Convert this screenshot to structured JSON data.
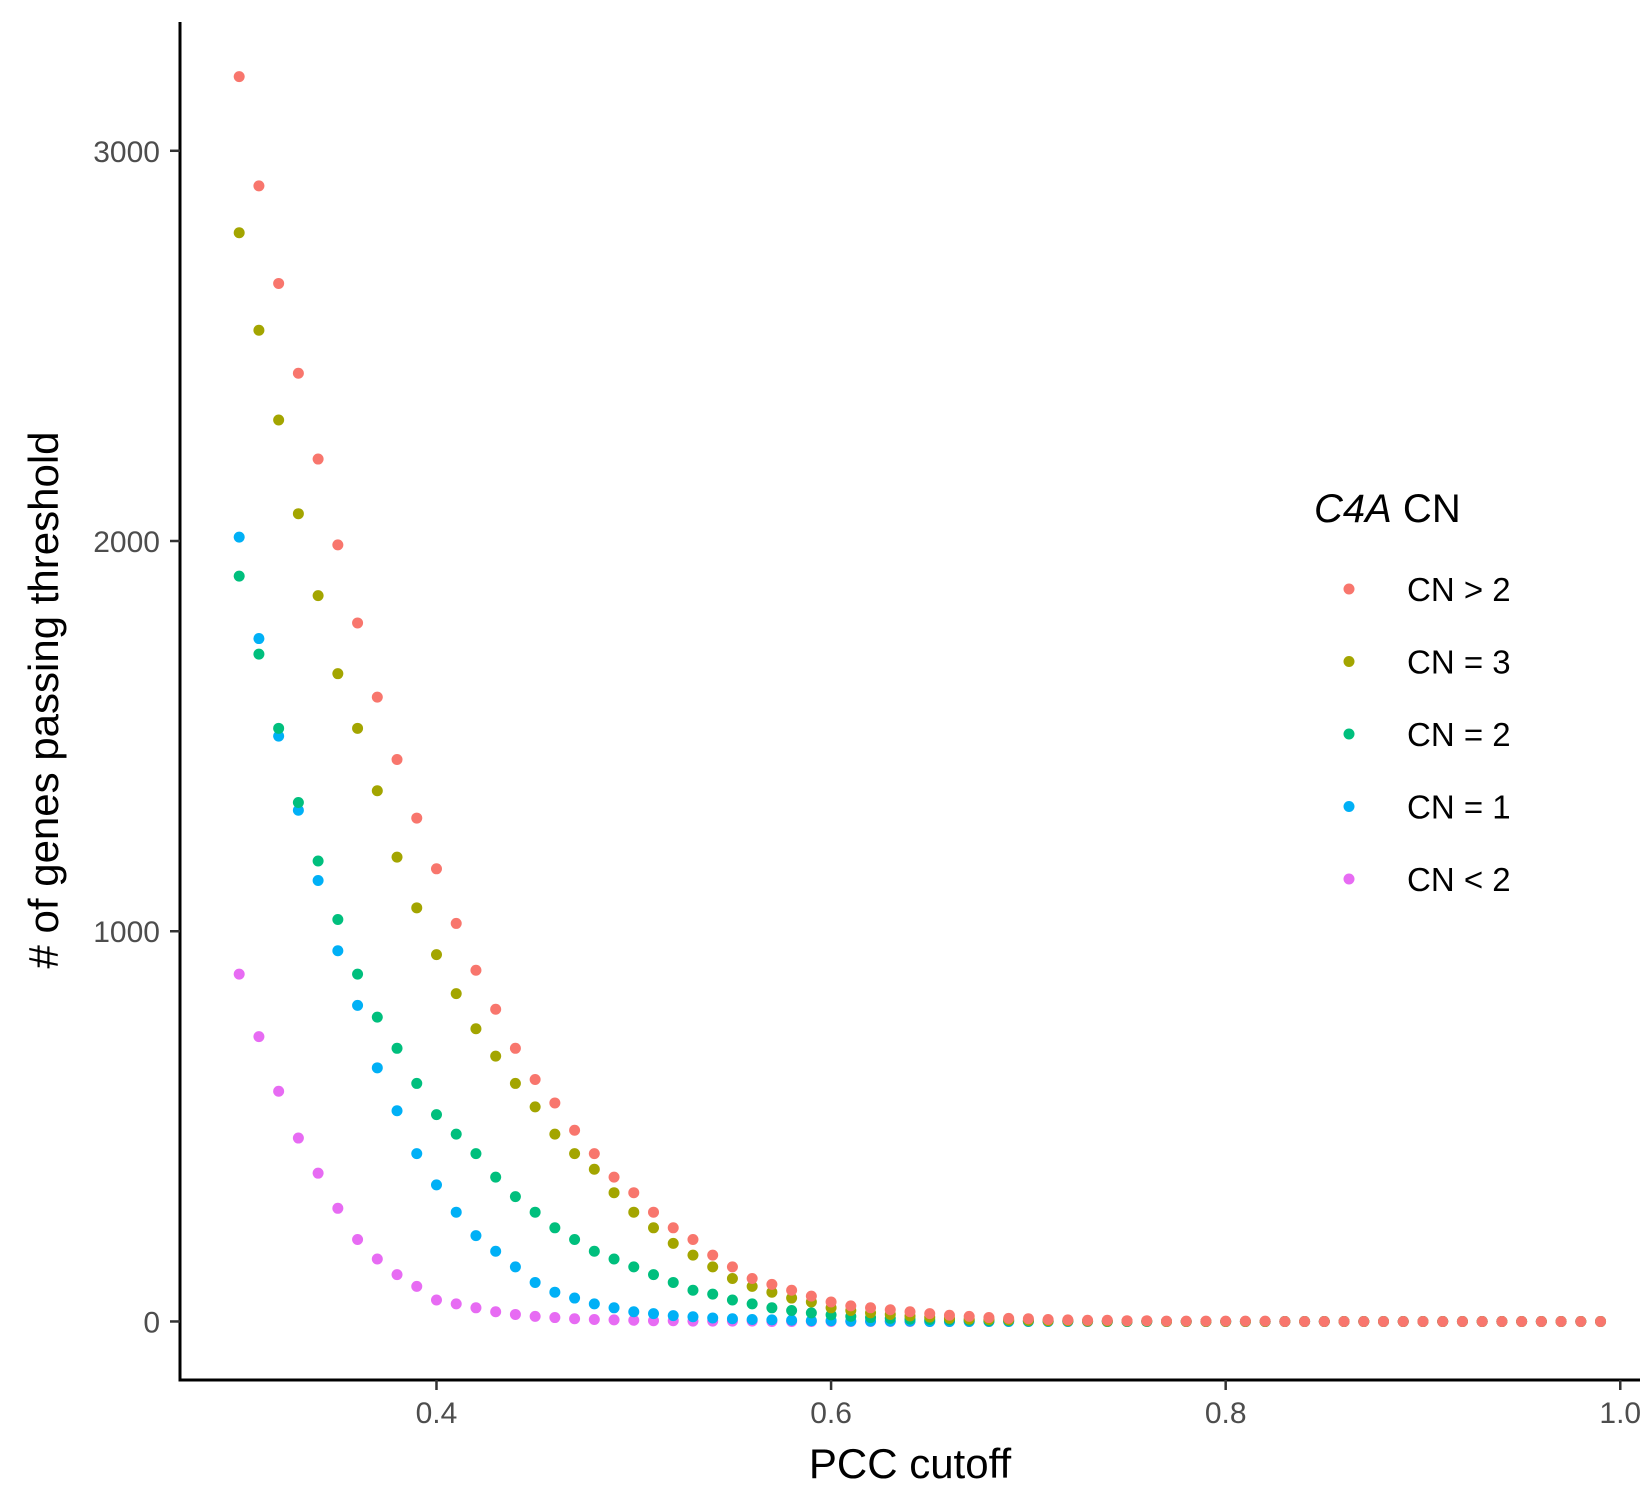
{
  "chart_data": {
    "type": "scatter",
    "title": "",
    "xlabel": "PCC cutoff",
    "ylabel": "# of genes passing threshold",
    "xlim": [
      0.27,
      1.01
    ],
    "ylim": [
      -150,
      3330
    ],
    "xticks": [
      0.4,
      0.6,
      0.8,
      1.0
    ],
    "xtick_labels": [
      "0.4",
      "0.6",
      "0.8",
      "1.0"
    ],
    "yticks": [
      0,
      1000,
      2000,
      3000
    ],
    "ytick_labels": [
      "0",
      "1000",
      "2000",
      "3000"
    ],
    "grid": false,
    "legend": {
      "title_italic": "C4A",
      "title_rest": " CN",
      "position": "right"
    },
    "x": [
      0.3,
      0.31,
      0.32,
      0.33,
      0.34,
      0.35,
      0.36,
      0.37,
      0.38,
      0.39,
      0.4,
      0.41,
      0.42,
      0.43,
      0.44,
      0.45,
      0.46,
      0.47,
      0.48,
      0.49,
      0.5,
      0.51,
      0.52,
      0.53,
      0.54,
      0.55,
      0.56,
      0.57,
      0.58,
      0.59,
      0.6,
      0.61,
      0.62,
      0.63,
      0.64,
      0.65,
      0.66,
      0.67,
      0.68,
      0.69,
      0.7,
      0.71,
      0.72,
      0.73,
      0.74,
      0.75,
      0.76,
      0.77,
      0.78,
      0.79,
      0.8,
      0.81,
      0.82,
      0.83,
      0.84,
      0.85,
      0.86,
      0.87,
      0.88,
      0.89,
      0.9,
      0.91,
      0.92,
      0.93,
      0.94,
      0.95,
      0.96,
      0.97,
      0.98,
      0.99
    ],
    "series": [
      {
        "name": "CN > 2",
        "color": "#F8766D",
        "values": [
          3190,
          2910,
          2660,
          2430,
          2210,
          1990,
          1790,
          1600,
          1440,
          1290,
          1160,
          1020,
          900,
          800,
          700,
          620,
          560,
          490,
          430,
          370,
          330,
          280,
          240,
          210,
          170,
          140,
          110,
          95,
          80,
          65,
          50,
          40,
          35,
          30,
          25,
          20,
          16,
          13,
          10,
          8,
          7,
          5,
          4,
          3,
          3,
          2,
          2,
          1,
          1,
          1,
          1,
          1,
          1,
          0,
          0,
          0,
          0,
          0,
          0,
          0,
          0,
          0,
          0,
          0,
          0,
          0,
          0,
          0,
          0,
          0
        ]
      },
      {
        "name": "CN = 3",
        "color": "#A3A500",
        "values": [
          2790,
          2540,
          2310,
          2070,
          1860,
          1660,
          1520,
          1360,
          1190,
          1060,
          940,
          840,
          750,
          680,
          610,
          550,
          480,
          430,
          390,
          330,
          280,
          240,
          200,
          170,
          140,
          110,
          90,
          75,
          60,
          50,
          35,
          28,
          22,
          18,
          14,
          11,
          8,
          6,
          5,
          4,
          3,
          2,
          2,
          1,
          1,
          1,
          1,
          0,
          0,
          0,
          0,
          0,
          0,
          0,
          0,
          0,
          0,
          0,
          0,
          0,
          0,
          0,
          0,
          0,
          0,
          0,
          0,
          0,
          0,
          0
        ]
      },
      {
        "name": "CN = 2",
        "color": "#00BF7D",
        "values": [
          1910,
          1710,
          1520,
          1330,
          1180,
          1030,
          890,
          780,
          700,
          610,
          530,
          480,
          430,
          370,
          320,
          280,
          240,
          210,
          180,
          160,
          140,
          120,
          100,
          80,
          70,
          55,
          45,
          35,
          28,
          22,
          17,
          13,
          10,
          8,
          6,
          5,
          4,
          3,
          2,
          2,
          1,
          1,
          1,
          1,
          0,
          0,
          0,
          0,
          0,
          0,
          0,
          0,
          0,
          0,
          0,
          0,
          0,
          0,
          0,
          0,
          0,
          0,
          0,
          0,
          0,
          0,
          0,
          0,
          0,
          0
        ]
      },
      {
        "name": "CN = 1",
        "color": "#00B0F6",
        "values": [
          2010,
          1750,
          1500,
          1310,
          1130,
          950,
          810,
          650,
          540,
          430,
          350,
          280,
          220,
          180,
          140,
          100,
          75,
          60,
          45,
          35,
          25,
          20,
          15,
          12,
          9,
          7,
          5,
          4,
          3,
          2,
          2,
          1,
          1,
          1,
          1,
          0,
          0,
          0,
          0,
          0,
          0,
          0,
          0,
          0,
          0,
          0,
          0,
          0,
          0,
          0,
          0,
          0,
          0,
          0,
          0,
          0,
          0,
          0,
          0,
          0,
          0,
          0,
          0,
          0,
          0,
          0,
          0,
          0,
          0,
          0
        ]
      },
      {
        "name": "CN < 2",
        "color": "#E76BF3",
        "values": [
          890,
          730,
          590,
          470,
          380,
          290,
          210,
          160,
          120,
          90,
          55,
          45,
          35,
          25,
          18,
          13,
          10,
          7,
          5,
          4,
          3,
          2,
          2,
          1,
          1,
          1,
          1,
          0,
          0,
          0,
          0,
          0,
          0,
          0,
          0,
          0,
          0,
          0,
          0,
          0,
          0,
          0,
          0,
          0,
          0,
          0,
          0,
          0,
          0,
          0,
          0,
          0,
          0,
          0,
          0,
          0,
          0,
          0,
          0,
          0,
          0,
          0,
          0,
          0,
          0,
          0,
          0,
          0,
          0,
          0
        ]
      }
    ]
  }
}
